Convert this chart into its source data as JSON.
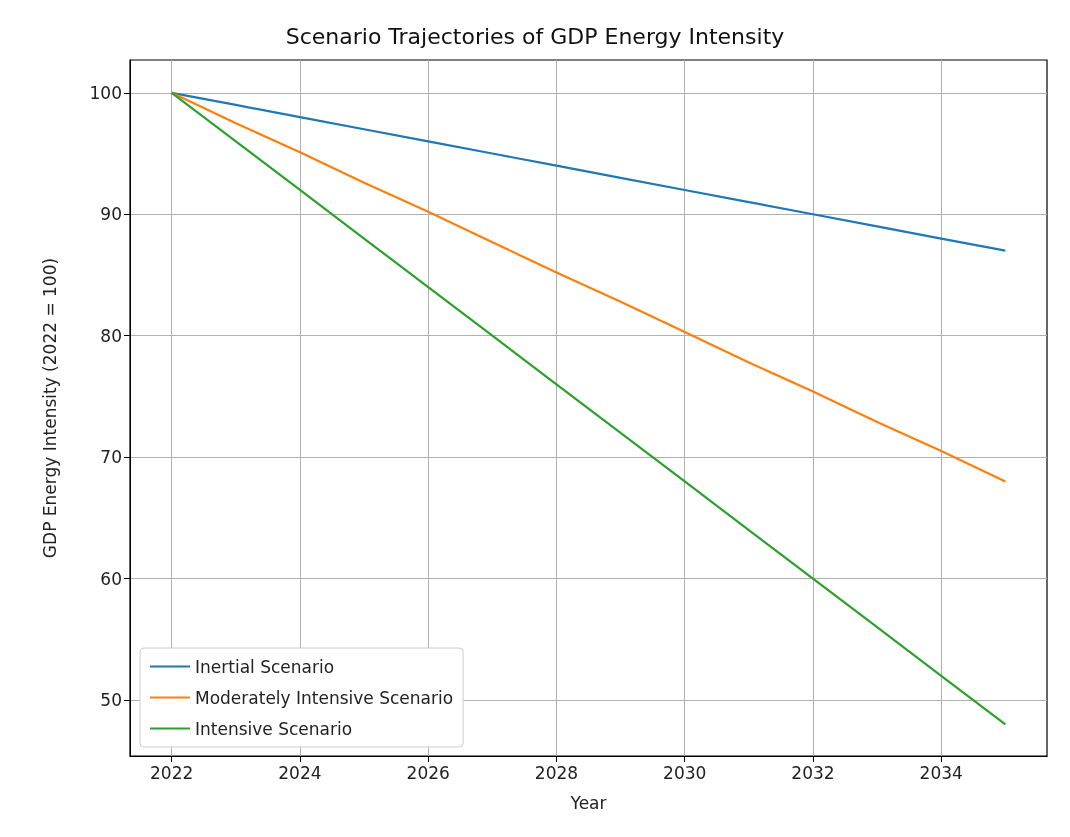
{
  "chart_data": {
    "type": "line",
    "title": "Scenario Trajectories of GDP Energy Intensity",
    "xlabel": "Year",
    "ylabel": "GDP Energy Intensity (2022 = 100)",
    "x": [
      2022,
      2023,
      2024,
      2025,
      2026,
      2027,
      2028,
      2029,
      2030,
      2031,
      2032,
      2033,
      2034,
      2035
    ],
    "series": [
      {
        "name": "Inertial Scenario",
        "color": "#1f77b4",
        "values": [
          100,
          99,
          98,
          97,
          96,
          95,
          94,
          93,
          92,
          91,
          90,
          89,
          88,
          87
        ]
      },
      {
        "name": "Moderately Intensive Scenario",
        "color": "#ff7f0e",
        "values": [
          100,
          97.5,
          95.1,
          92.6,
          90.2,
          87.7,
          85.2,
          82.8,
          80.3,
          77.8,
          75.4,
          72.9,
          70.5,
          68
        ]
      },
      {
        "name": "Intensive Scenario",
        "color": "#2ca02c",
        "values": [
          100,
          96,
          92,
          88,
          84,
          80,
          76,
          72,
          68,
          64,
          60,
          56,
          52,
          48
        ]
      }
    ],
    "xlim": [
      2021.35,
      2035.65
    ],
    "ylim": [
      45.4,
      102.7
    ],
    "xticks": [
      2022,
      2024,
      2026,
      2028,
      2030,
      2032,
      2034
    ],
    "yticks": [
      50,
      60,
      70,
      80,
      90,
      100
    ],
    "grid": true,
    "legend": "bottom left",
    "marker": "none",
    "line_style": "solid"
  }
}
